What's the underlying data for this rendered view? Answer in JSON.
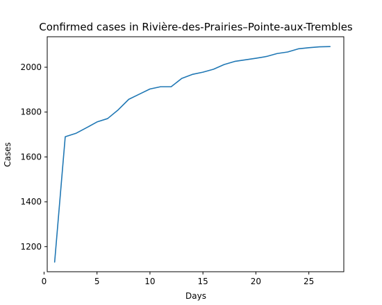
{
  "chart_data": {
    "type": "line",
    "title": "Confirmed cases in Rivière-des-Prairies–Pointe-aux-Trembles",
    "xlabel": "Days",
    "ylabel": "Cases",
    "xlim": [
      0.3,
      28.3
    ],
    "ylim": [
      1088,
      2136
    ],
    "xticks": [
      0,
      5,
      10,
      15,
      20,
      25
    ],
    "yticks": [
      1200,
      1400,
      1600,
      1800,
      2000
    ],
    "grid": false,
    "series": [
      {
        "color": "#1f77b4",
        "x": [
          1,
          2,
          3,
          4,
          5,
          6,
          7,
          8,
          9,
          10,
          11,
          12,
          13,
          14,
          15,
          16,
          17,
          18,
          19,
          20,
          21,
          22,
          23,
          24,
          25,
          26,
          27
        ],
        "y": [
          1131,
          1690,
          1705,
          1730,
          1756,
          1771,
          1810,
          1857,
          1880,
          1903,
          1913,
          1913,
          1950,
          1968,
          1978,
          1991,
          2012,
          2026,
          2033,
          2040,
          2048,
          2061,
          2068,
          2082,
          2087,
          2091,
          2092
        ]
      }
    ]
  }
}
